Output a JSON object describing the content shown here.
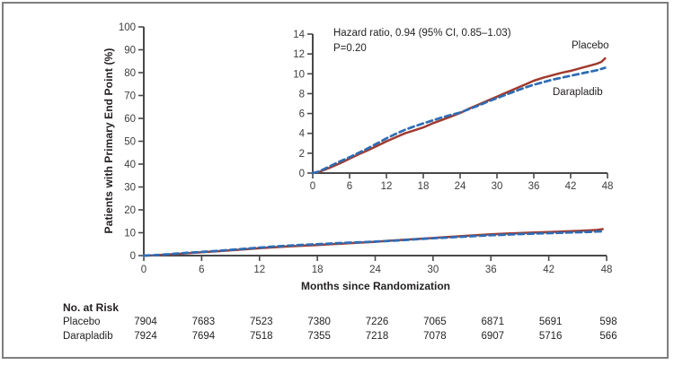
{
  "figure": {
    "background": "#ffffff",
    "border_color": "#7e7e7e",
    "axis_color": "#48484a",
    "text_color": "#231f20"
  },
  "chart_data": [
    {
      "id": "main-cumulative-incidence",
      "type": "line",
      "title": "",
      "xlabel": "Months since Randomization",
      "ylabel": "Patients with Primary End Point (%)",
      "xlim": [
        0,
        48
      ],
      "ylim": [
        0,
        100
      ],
      "xticks": [
        0,
        6,
        12,
        18,
        24,
        30,
        36,
        42,
        48
      ],
      "yticks": [
        0,
        10,
        20,
        30,
        40,
        50,
        60,
        70,
        80,
        90,
        100
      ],
      "grid": false,
      "legend_position": "none",
      "series": [
        {
          "name": "Placebo",
          "color": "#a03a2f",
          "style": "solid",
          "x": [
            0,
            1,
            2,
            3,
            4.5,
            6,
            7.5,
            9,
            10.5,
            12,
            13.5,
            15,
            16.5,
            18,
            19.5,
            21,
            22.5,
            24,
            25.5,
            27,
            28.5,
            30,
            31.5,
            33,
            34.5,
            36,
            37.5,
            39,
            40.5,
            42,
            43.5,
            45,
            46.2,
            47.0,
            47.6
          ],
          "y": [
            0,
            0.1,
            0.35,
            0.6,
            1.0,
            1.45,
            1.9,
            2.3,
            2.75,
            3.2,
            3.6,
            4.0,
            4.3,
            4.6,
            5.0,
            5.35,
            5.7,
            6.05,
            6.5,
            6.9,
            7.3,
            7.7,
            8.1,
            8.5,
            8.9,
            9.3,
            9.6,
            9.85,
            10.1,
            10.3,
            10.55,
            10.8,
            11.0,
            11.2,
            11.55
          ]
        },
        {
          "name": "Darapladib",
          "color": "#2f6cb3",
          "style": "dashed",
          "x": [
            0,
            1,
            2,
            3,
            4.5,
            6,
            7.5,
            9,
            10.5,
            12,
            13.5,
            15,
            16.5,
            18,
            19.5,
            21,
            22.5,
            24,
            25.5,
            27,
            28.5,
            30,
            31.5,
            33,
            34.5,
            36,
            37.5,
            39,
            40.5,
            42,
            43.5,
            45,
            46.2,
            47.0,
            47.6
          ],
          "y": [
            0,
            0.15,
            0.45,
            0.75,
            1.2,
            1.6,
            2.05,
            2.5,
            3.0,
            3.5,
            3.95,
            4.35,
            4.7,
            5.0,
            5.3,
            5.6,
            5.85,
            6.1,
            6.45,
            6.8,
            7.2,
            7.55,
            7.9,
            8.25,
            8.6,
            8.9,
            9.15,
            9.4,
            9.6,
            9.8,
            10.0,
            10.2,
            10.35,
            10.5,
            10.6
          ]
        }
      ]
    },
    {
      "id": "expanded-inset",
      "type": "line",
      "title": "",
      "xlabel": "",
      "ylabel": "",
      "xlim": [
        0,
        48
      ],
      "ylim": [
        0,
        14
      ],
      "xticks": [
        0,
        6,
        12,
        18,
        24,
        30,
        36,
        42,
        48
      ],
      "yticks": [
        0,
        2,
        4,
        6,
        8,
        10,
        12,
        14
      ],
      "grid": false,
      "series_ref": 0,
      "annotations": [
        "Hazard ratio, 0.94 (95% CI, 0.85–1.03)",
        "P=0.20"
      ],
      "curve_labels": [
        "Placebo",
        "Darapladib"
      ]
    }
  ],
  "risk_table": {
    "title": "No. at Risk",
    "columns": [
      0,
      6,
      12,
      18,
      24,
      30,
      36,
      42,
      48
    ],
    "rows": [
      {
        "label": "Placebo",
        "values": [
          7904,
          7683,
          7523,
          7380,
          7226,
          7065,
          6871,
          5691,
          598
        ]
      },
      {
        "label": "Darapladib",
        "values": [
          7924,
          7694,
          7518,
          7355,
          7218,
          7078,
          6907,
          5716,
          566
        ]
      }
    ]
  }
}
